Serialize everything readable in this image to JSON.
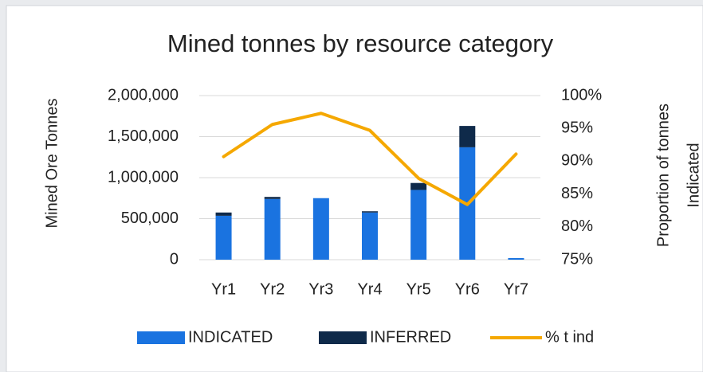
{
  "chart_data": {
    "type": "combo",
    "title": "Mined tonnes by resource category",
    "ylabel": "Mined Ore Tonnes",
    "y2label": [
      "Proportion of tonnes",
      "Indicated"
    ],
    "categories": [
      "Yr1",
      "Yr2",
      "Yr3",
      "Yr4",
      "Yr5",
      "Yr6",
      "Yr7"
    ],
    "stacked": true,
    "series": [
      {
        "name": "INDICATED",
        "type": "bar",
        "color": "#1a73e0",
        "values": [
          535000,
          740000,
          750000,
          575000,
          850000,
          1370000,
          20000
        ]
      },
      {
        "name": "INFERRED",
        "type": "bar",
        "color": "#0f2a4a",
        "values": [
          40000,
          25000,
          0,
          15000,
          85000,
          260000,
          0
        ]
      },
      {
        "name": "% t ind",
        "type": "line",
        "axis": "y2",
        "color": "#f5a800",
        "values": [
          90.7,
          95.6,
          97.3,
          94.7,
          87.4,
          83.4,
          91.1
        ]
      }
    ],
    "ylim": [
      0,
      2000000
    ],
    "yticks": [
      0,
      {
        "value": 500000,
        "label": "500,000"
      },
      {
        "value": 1000000,
        "label": "1,000,000"
      },
      {
        "value": 1500000,
        "label": "1,500,000"
      },
      {
        "value": 2000000,
        "label": "2,000,000"
      }
    ],
    "y2lim": [
      75,
      100
    ],
    "y2ticks": [
      {
        "value": 75,
        "label": "75%"
      },
      {
        "value": 80,
        "label": "80%"
      },
      {
        "value": 85,
        "label": "85%"
      },
      {
        "value": 90,
        "label": "90%"
      },
      {
        "value": 95,
        "label": "95%"
      },
      {
        "value": 100,
        "label": "100%"
      }
    ],
    "grid": true,
    "legend": "bottom"
  }
}
